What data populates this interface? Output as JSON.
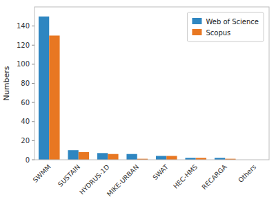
{
  "chart_data": {
    "type": "bar",
    "ylabel": "Numbers",
    "categories": [
      "SWMM",
      "SUSTAIN",
      "HYDRUS-1D",
      "MIKE-URBAN",
      "SWAT",
      "HEC-HMS",
      "RECARGA",
      "Others"
    ],
    "series": [
      {
        "name": "Web of Science",
        "color": "#2E86C1",
        "values": [
          150,
          10,
          7,
          6,
          4,
          2,
          2,
          0
        ]
      },
      {
        "name": "Scopus",
        "color": "#E87722",
        "values": [
          130,
          8,
          6,
          1,
          4,
          2,
          1,
          0
        ]
      }
    ],
    "ylim": [
      0,
      160
    ],
    "yticks": [
      0,
      20,
      40,
      60,
      80,
      100,
      120,
      140
    ],
    "grid": false,
    "legend": "upper right"
  }
}
